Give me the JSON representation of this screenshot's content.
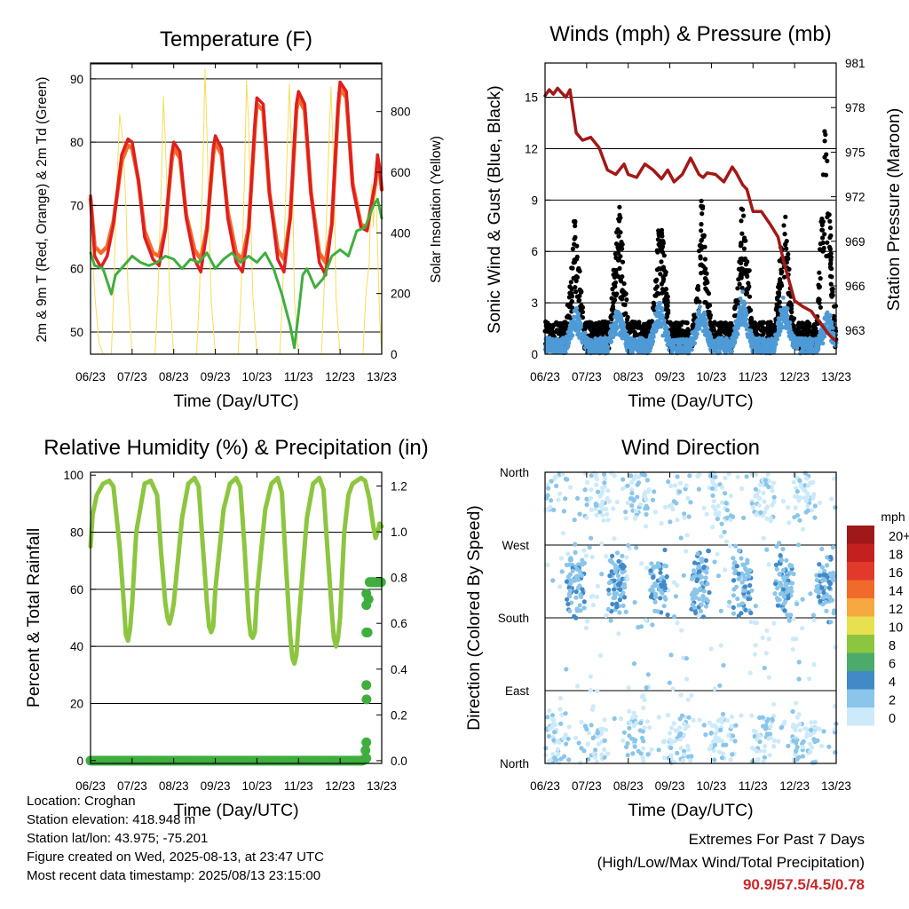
{
  "colors": {
    "temp2m": "#e01e1e",
    "temp9m": "#f26b2b",
    "dewpoint": "#3fae3f",
    "insolation": "#f5dd55",
    "gust": "#000000",
    "wind": "#4e9ad6",
    "pressure": "#a31818",
    "rh": "#8cc63f",
    "precip": "#3fae3f"
  },
  "chart_data": [
    {
      "id": "temperature",
      "type": "line",
      "title": "Temperature (F)",
      "xlabel": "Time (Day/UTC)",
      "ylabel": "2m & 9m T (Red, Orange) & 2m Td (Green)",
      "y2label": "Solar Insolation (Yellow)",
      "x_ticks": [
        "06/23",
        "07/23",
        "08/23",
        "09/23",
        "10/23",
        "11/23",
        "12/23",
        "13/23"
      ],
      "xlim": [
        6,
        13
      ],
      "ylim": [
        46.5,
        92.5
      ],
      "y_ticks": [
        50,
        60,
        70,
        80,
        90
      ],
      "y2lim": [
        0,
        960
      ],
      "y2_ticks": [
        0,
        200,
        400,
        600,
        800
      ],
      "series": [
        {
          "key": "t2m",
          "axis": "left",
          "x": [
            6.0,
            6.1,
            6.25,
            6.4,
            6.55,
            6.75,
            6.9,
            7.0,
            7.15,
            7.3,
            7.5,
            7.65,
            7.8,
            7.95,
            8.0,
            8.15,
            8.3,
            8.5,
            8.65,
            8.8,
            8.95,
            9.0,
            9.15,
            9.3,
            9.5,
            9.65,
            9.8,
            9.95,
            10.0,
            10.15,
            10.3,
            10.5,
            10.65,
            10.8,
            10.95,
            11.0,
            11.15,
            11.3,
            11.5,
            11.65,
            11.8,
            11.95,
            12.0,
            12.15,
            12.3,
            12.5,
            12.65,
            12.75,
            12.85,
            12.9,
            12.95,
            13.0
          ],
          "y": [
            71.5,
            62.0,
            60.2,
            62.0,
            67.0,
            78.0,
            80.5,
            80.0,
            74.0,
            65.0,
            61.5,
            60.5,
            66.0,
            78.0,
            80.0,
            78.5,
            68.0,
            61.5,
            59.5,
            66.0,
            79.0,
            81.0,
            79.0,
            68.0,
            61.0,
            59.5,
            66.0,
            83.0,
            87.0,
            86.0,
            72.0,
            61.5,
            59.5,
            68.0,
            86.0,
            88.0,
            86.0,
            72.0,
            61.0,
            59.0,
            67.0,
            86.0,
            89.5,
            88.0,
            73.0,
            66.5,
            66.0,
            70.0,
            74.0,
            78.0,
            76.0,
            72.5
          ]
        },
        {
          "key": "t9m",
          "axis": "left",
          "x": [
            6.0,
            6.1,
            6.25,
            6.4,
            6.55,
            6.75,
            6.9,
            7.0,
            7.15,
            7.3,
            7.5,
            7.65,
            7.8,
            7.95,
            8.0,
            8.15,
            8.3,
            8.5,
            8.65,
            8.8,
            8.95,
            9.0,
            9.15,
            9.3,
            9.5,
            9.65,
            9.8,
            9.95,
            10.0,
            10.15,
            10.3,
            10.5,
            10.65,
            10.8,
            10.95,
            11.0,
            11.15,
            11.3,
            11.5,
            11.65,
            11.8,
            11.95,
            12.0,
            12.15,
            12.3,
            12.5,
            12.65,
            12.75,
            12.85,
            12.9,
            12.95,
            13.0
          ],
          "y": [
            71.0,
            63.5,
            62.5,
            63.5,
            67.5,
            77.0,
            79.5,
            79.0,
            74.0,
            66.0,
            62.5,
            62.0,
            66.5,
            77.0,
            79.0,
            77.5,
            68.5,
            63.0,
            61.5,
            66.5,
            78.0,
            80.0,
            78.0,
            69.0,
            62.5,
            61.5,
            66.5,
            82.0,
            86.0,
            85.0,
            72.0,
            63.0,
            61.5,
            68.0,
            85.0,
            87.0,
            85.0,
            72.0,
            62.5,
            61.0,
            67.0,
            85.0,
            88.5,
            87.0,
            73.5,
            67.0,
            66.5,
            70.0,
            73.5,
            77.0,
            75.5,
            72.5
          ]
        },
        {
          "key": "td2m",
          "axis": "left",
          "x": [
            6.0,
            6.1,
            6.3,
            6.5,
            6.6,
            6.8,
            7.0,
            7.2,
            7.4,
            7.6,
            7.8,
            8.0,
            8.2,
            8.4,
            8.6,
            8.8,
            9.0,
            9.2,
            9.4,
            9.6,
            9.8,
            10.0,
            10.2,
            10.4,
            10.6,
            10.8,
            10.9,
            11.0,
            11.1,
            11.2,
            11.4,
            11.6,
            11.8,
            12.0,
            12.2,
            12.4,
            12.6,
            12.8,
            12.9,
            13.0
          ],
          "y": [
            62.5,
            60.5,
            60.0,
            56.0,
            59.0,
            60.5,
            62.0,
            61.0,
            60.5,
            61.0,
            62.0,
            61.5,
            60.0,
            61.5,
            61.0,
            62.5,
            60.0,
            61.5,
            62.5,
            61.0,
            62.0,
            61.0,
            62.5,
            60.0,
            56.0,
            51.0,
            47.5,
            53.0,
            59.0,
            60.0,
            57.0,
            58.5,
            62.0,
            63.0,
            62.0,
            66.0,
            66.5,
            70.0,
            71.0,
            68.0
          ]
        },
        {
          "key": "insolation",
          "axis": "right",
          "x": [
            6.0,
            6.1,
            6.2,
            6.3,
            6.5,
            6.55,
            6.62,
            6.7,
            6.78,
            6.86,
            6.9,
            7.0,
            7.55,
            7.62,
            7.7,
            7.75,
            7.8,
            7.85,
            7.9,
            8.0,
            8.55,
            8.62,
            8.7,
            8.75,
            8.8,
            8.85,
            8.9,
            9.0,
            9.55,
            9.62,
            9.7,
            9.75,
            9.8,
            9.85,
            9.9,
            10.0,
            10.55,
            10.62,
            10.7,
            10.78,
            10.86,
            10.9,
            11.0,
            11.55,
            11.62,
            11.7,
            11.78,
            11.86,
            11.9,
            12.0,
            12.55,
            12.62,
            12.7,
            12.75,
            12.8,
            12.85,
            12.9,
            12.95,
            13.0
          ],
          "y": [
            420,
            200,
            40,
            0,
            0,
            180,
            520,
            790,
            700,
            460,
            200,
            0,
            0,
            200,
            560,
            850,
            700,
            480,
            200,
            0,
            0,
            210,
            600,
            940,
            720,
            450,
            180,
            0,
            0,
            200,
            580,
            900,
            760,
            460,
            200,
            0,
            0,
            210,
            560,
            890,
            560,
            180,
            0,
            0,
            220,
            570,
            880,
            560,
            190,
            0,
            0,
            200,
            300,
            560,
            420,
            600,
            350,
            120,
            0
          ]
        }
      ]
    },
    {
      "id": "winds",
      "type": "scatter",
      "title": "Winds (mph) & Pressure (mb)",
      "xlabel": "Time (Day/UTC)",
      "ylabel": "Sonic Wind & Gust (Blue, Black)",
      "y2label": "Station Pressure (Maroon)",
      "x_ticks": [
        "06/23",
        "07/23",
        "08/23",
        "09/23",
        "10/23",
        "11/23",
        "12/23",
        "13/23"
      ],
      "xlim": [
        6,
        13
      ],
      "ylim": [
        0,
        17
      ],
      "y_ticks": [
        0,
        3,
        6,
        9,
        12,
        15
      ],
      "y2lim": [
        961.4,
        981.0
      ],
      "y2_ticks": [
        963,
        966,
        969,
        972,
        975,
        978,
        981
      ],
      "gust_peaks": [
        {
          "x": 6.72,
          "y": 8.3
        },
        {
          "x": 7.78,
          "y": 9.6
        },
        {
          "x": 8.78,
          "y": 9.2
        },
        {
          "x": 9.78,
          "y": 9.4
        },
        {
          "x": 10.75,
          "y": 9.8
        },
        {
          "x": 11.75,
          "y": 9.9
        },
        {
          "x": 12.75,
          "y": 14.8
        }
      ],
      "wind_peaks": [
        {
          "x": 6.75,
          "y": 3.0
        },
        {
          "x": 7.75,
          "y": 3.2
        },
        {
          "x": 8.75,
          "y": 3.5
        },
        {
          "x": 9.75,
          "y": 3.3
        },
        {
          "x": 10.75,
          "y": 3.9
        },
        {
          "x": 11.75,
          "y": 3.6
        },
        {
          "x": 12.8,
          "y": 2.8
        }
      ],
      "pressure": {
        "x": [
          6.0,
          6.1,
          6.2,
          6.3,
          6.4,
          6.5,
          6.6,
          6.75,
          6.9,
          7.1,
          7.3,
          7.5,
          7.7,
          7.9,
          8.0,
          8.2,
          8.4,
          8.6,
          8.8,
          8.95,
          9.1,
          9.3,
          9.5,
          9.7,
          9.8,
          9.9,
          10.1,
          10.3,
          10.5,
          10.6,
          10.75,
          10.85,
          11.0,
          11.2,
          11.4,
          11.6,
          11.75,
          11.9,
          12.0,
          12.2,
          12.4,
          12.5,
          12.6,
          12.7,
          12.8,
          12.9,
          13.0
        ],
        "y": [
          978.8,
          979.2,
          978.9,
          979.3,
          979.0,
          978.7,
          979.2,
          976.3,
          975.8,
          976.0,
          975.3,
          973.8,
          973.5,
          974.2,
          973.5,
          973.3,
          974.2,
          973.8,
          973.2,
          973.8,
          973.0,
          973.5,
          974.6,
          973.5,
          973.3,
          973.6,
          973.5,
          973.0,
          974.0,
          973.6,
          972.8,
          972.5,
          971.0,
          971.0,
          970.2,
          969.3,
          967.5,
          966.0,
          965.0,
          964.6,
          964.3,
          963.9,
          963.6,
          963.2,
          962.8,
          962.5,
          962.3
        ]
      }
    },
    {
      "id": "humidity",
      "type": "line",
      "title": "Relative Humidity (%) & Precipitation (in)",
      "xlabel": "Time (Day/UTC)",
      "ylabel": "Percent & Total Rainfall",
      "x_ticks": [
        "06/23",
        "07/23",
        "08/23",
        "09/23",
        "10/23",
        "11/23",
        "12/23",
        "13/23"
      ],
      "xlim": [
        6,
        13
      ],
      "ylim": [
        -1,
        101
      ],
      "y_ticks": [
        0,
        20,
        40,
        60,
        80,
        100
      ],
      "y2lim": [
        -0.012,
        1.26
      ],
      "y2_ticks": [
        "0.0",
        "0.2",
        "0.4",
        "0.6",
        "0.8",
        "1.0",
        "1.2"
      ],
      "series": [
        {
          "key": "rh",
          "axis": "left",
          "x": [
            6.0,
            6.05,
            6.15,
            6.3,
            6.45,
            6.55,
            6.7,
            6.8,
            6.85,
            6.9,
            6.95,
            7.0,
            7.1,
            7.3,
            7.45,
            7.6,
            7.7,
            7.8,
            7.85,
            7.9,
            7.95,
            8.0,
            8.2,
            8.35,
            8.5,
            8.6,
            8.7,
            8.8,
            8.85,
            8.9,
            8.95,
            9.0,
            9.2,
            9.35,
            9.5,
            9.6,
            9.7,
            9.8,
            9.85,
            9.9,
            9.95,
            10.0,
            10.2,
            10.35,
            10.5,
            10.6,
            10.7,
            10.8,
            10.85,
            10.9,
            10.95,
            11.0,
            11.2,
            11.35,
            11.5,
            11.6,
            11.7,
            11.8,
            11.85,
            11.9,
            11.95,
            12.0,
            12.1,
            12.2,
            12.3,
            12.4,
            12.5,
            12.6,
            12.7,
            12.8,
            12.85,
            12.9,
            12.95,
            13.0
          ],
          "y": [
            75,
            86,
            93,
            97,
            98,
            96,
            75,
            55,
            44,
            42,
            46,
            55,
            80,
            97,
            98,
            93,
            72,
            55,
            50,
            48,
            51,
            55,
            85,
            97,
            99,
            96,
            75,
            55,
            47,
            45,
            47,
            60,
            88,
            97,
            99,
            96,
            75,
            50,
            44,
            43,
            45,
            58,
            88,
            97,
            99,
            94,
            68,
            44,
            36,
            34,
            37,
            48,
            85,
            97,
            99,
            95,
            73,
            52,
            43,
            40,
            43,
            50,
            80,
            93,
            97,
            98,
            99,
            98,
            92,
            82,
            78,
            80,
            83,
            82
          ]
        },
        {
          "key": "precip",
          "axis": "right",
          "x": [
            6.0,
            12.45,
            12.55,
            12.6,
            12.62,
            12.64,
            12.66,
            12.68,
            12.7,
            12.8,
            12.9,
            13.0
          ],
          "y": [
            0.0,
            0.0,
            0.0,
            0.01,
            0.08,
            0.33,
            0.56,
            0.68,
            0.78,
            0.78,
            0.78,
            0.78
          ]
        }
      ]
    },
    {
      "id": "direction",
      "type": "scatter",
      "title": "Wind Direction",
      "xlabel": "Time (Day/UTC)",
      "ylabel": "Direction (Colored By Speed)",
      "x_ticks": [
        "06/23",
        "07/23",
        "08/23",
        "09/23",
        "10/23",
        "11/23",
        "12/23",
        "13/23"
      ],
      "xlim": [
        6,
        13
      ],
      "ylim": [
        0,
        360
      ],
      "y_ticks": [
        "North",
        "East",
        "South",
        "West",
        "North"
      ],
      "colorbar_title": "mph",
      "colorbar_labels": [
        "0",
        "2",
        "4",
        "6",
        "8",
        "10",
        "12",
        "14",
        "16",
        "18",
        "20+"
      ],
      "colorbar_colors": [
        "#cceaf9",
        "#8ac5ea",
        "#4289c8",
        "#4caa6a",
        "#8cc63f",
        "#e7e04f",
        "#f7a840",
        "#ef6a2b",
        "#e1392a",
        "#c3201f",
        "#9e1918"
      ]
    }
  ],
  "info": {
    "location": "Location: Croghan",
    "elevation": "Station elevation: 418.948 m",
    "latlon": "Station lat/lon: 43.975; -75.201",
    "created": "Figure created on Wed, 2025-08-13, at 23:47 UTC",
    "recent": "Most recent data timestamp: 2025/08/13 23:15:00"
  },
  "extremes": {
    "line1": "Extremes For Past 7 Days",
    "line2": "(High/Low/Max Wind/Total Precipitation)",
    "values": "90.9/57.5/4.5/0.78"
  }
}
